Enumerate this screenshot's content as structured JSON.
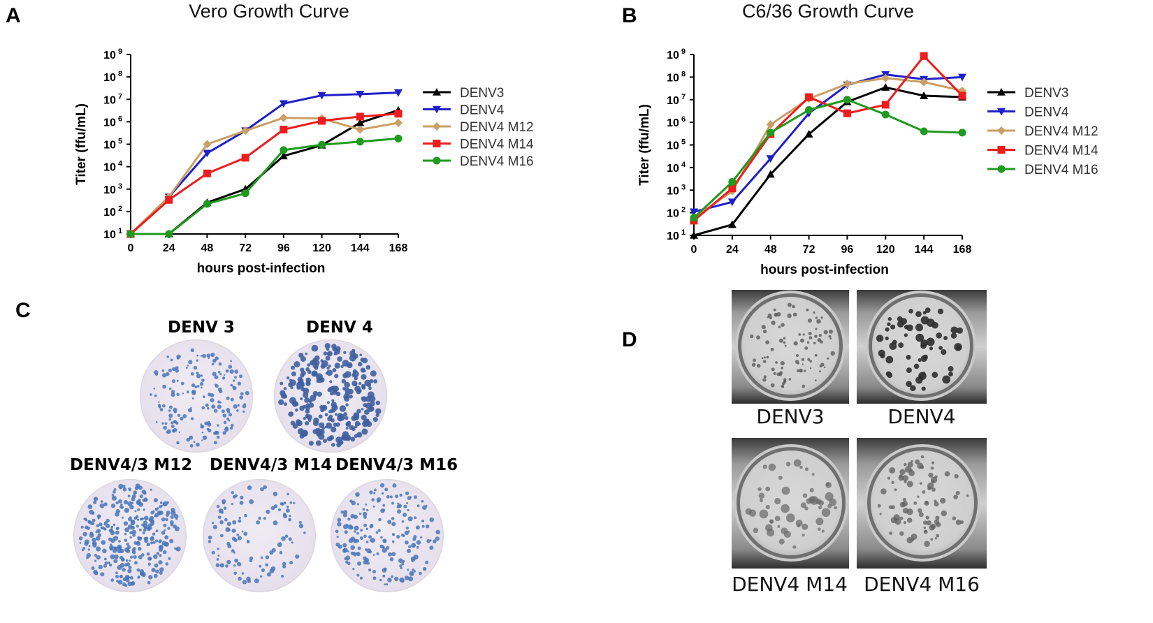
{
  "panels": {
    "A": "A",
    "B": "B",
    "C": "C",
    "D": "D"
  },
  "chart_data": [
    {
      "id": "A",
      "type": "line",
      "title": "Vero  Growth Curve",
      "xlabel": "hours post-infection",
      "ylabel": "Titer (ffu/mL)",
      "yscale": "log",
      "ylim": [
        10,
        1000000000
      ],
      "xlim": [
        0,
        168
      ],
      "x": [
        0,
        24,
        48,
        72,
        96,
        120,
        144,
        168
      ],
      "x_ticks": [
        "0",
        "24",
        "48",
        "72",
        "96",
        "120",
        "144",
        "168"
      ],
      "y_tick_exponents": [
        "1",
        "2",
        "3",
        "4",
        "5",
        "6",
        "7",
        "8",
        "9"
      ],
      "y_tick_base": "10",
      "legend_position": "right",
      "series": [
        {
          "name": "DENV3",
          "color": "#000000",
          "marker": "triangle-up",
          "values": [
            10,
            10,
            250,
            1000,
            30000,
            90000,
            900000,
            3300000
          ]
        },
        {
          "name": "DENV4",
          "color": "#1f1fc8",
          "marker": "triangle-down",
          "values": [
            10,
            450,
            40000,
            400000,
            6500000,
            15000000,
            17000000,
            20000000
          ]
        },
        {
          "name": "DENV4 M12",
          "color": "#c9a063",
          "marker": "diamond",
          "values": [
            10,
            450,
            100000,
            400000,
            1500000,
            1400000,
            450000,
            900000
          ]
        },
        {
          "name": "DENV4 M14",
          "color": "#ee1c1c",
          "marker": "square",
          "values": [
            10,
            330,
            5000,
            25000,
            450000,
            1100000,
            1700000,
            2300000
          ]
        },
        {
          "name": "DENV4 M16",
          "color": "#1e9a1e",
          "marker": "circle",
          "values": [
            10,
            10,
            220,
            650,
            55000,
            95000,
            130000,
            180000
          ]
        }
      ]
    },
    {
      "id": "B",
      "type": "line",
      "title": "C6/36 Growth Curve",
      "xlabel": "hours post-infection",
      "ylabel": "Titer (ffu/mL)",
      "yscale": "log",
      "ylim": [
        10,
        1000000000
      ],
      "xlim": [
        0,
        168
      ],
      "x": [
        0,
        24,
        48,
        72,
        96,
        120,
        144,
        168
      ],
      "x_ticks": [
        "0",
        "24",
        "48",
        "72",
        "96",
        "120",
        "144",
        "168"
      ],
      "y_tick_exponents": [
        "1",
        "2",
        "3",
        "4",
        "5",
        "6",
        "7",
        "8",
        "9"
      ],
      "y_tick_base": "10",
      "legend_position": "right",
      "series": [
        {
          "name": "DENV3",
          "color": "#000000",
          "marker": "triangle-up",
          "values": [
            10,
            30,
            5000,
            300000,
            8000000,
            35000000,
            15000000,
            13000000
          ]
        },
        {
          "name": "DENV4",
          "color": "#1f1fc8",
          "marker": "triangle-down",
          "values": [
            110,
            300,
            25000,
            2500000,
            45000000,
            130000000,
            80000000,
            100000000
          ]
        },
        {
          "name": "DENV4 M12",
          "color": "#c9a063",
          "marker": "diamond",
          "values": [
            60,
            900,
            800000,
            11000000,
            50000000,
            90000000,
            60000000,
            25000000
          ]
        },
        {
          "name": "DENV4 M14",
          "color": "#ee1c1c",
          "marker": "square",
          "values": [
            45,
            1200,
            300000,
            13000000,
            2500000,
            6000000,
            850000000,
            15000000
          ]
        },
        {
          "name": "DENV4 M16",
          "color": "#1e9a1e",
          "marker": "circle",
          "values": [
            60,
            2300,
            350000,
            3500000,
            10000000,
            2200000,
            400000,
            350000
          ]
        }
      ]
    }
  ],
  "panel_c": {
    "top_row": [
      "DENV 3",
      "DENV 4"
    ],
    "bottom_row": [
      "DENV4/3 M12",
      "DENV4/3 M14",
      "DENV4/3 M16"
    ]
  },
  "panel_d": {
    "labels": [
      "DENV3",
      "DENV4",
      "DENV4 M14",
      "DENV4 M16"
    ]
  },
  "colors": {
    "plaque_blue": "#4a76b8",
    "plaque_dark": "#3c3c3c"
  }
}
